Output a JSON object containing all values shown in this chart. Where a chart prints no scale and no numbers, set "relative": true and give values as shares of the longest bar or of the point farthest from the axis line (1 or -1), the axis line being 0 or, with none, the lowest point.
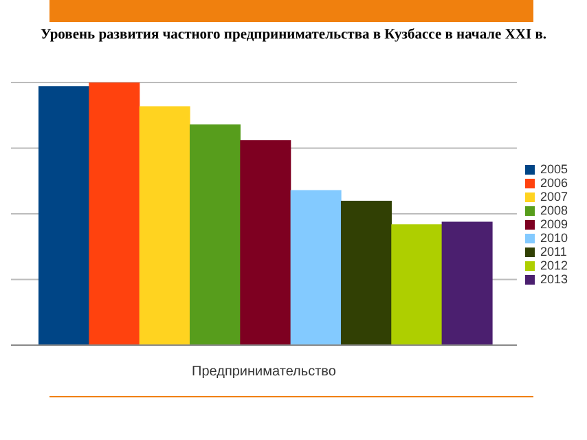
{
  "chart_data": {
    "type": "bar",
    "title": "Уровень развития частного предпринимательства в Кузбассе в начале XXI в.",
    "xlabel": "Предпринимательство",
    "categories": [
      null,
      null,
      null,
      null,
      null,
      null,
      null,
      null,
      null
    ],
    "relative": true,
    "grid": "y",
    "legend": "right",
    "stacked": true,
    "series": [
      {
        "name": "2005",
        "color": "#004586",
        "values": [
          0.986,
          null,
          null,
          null,
          null,
          null,
          null,
          null,
          null
        ]
      },
      {
        "name": "2006",
        "color": "#ff420e",
        "values": [
          null,
          1,
          null,
          null,
          null,
          null,
          null,
          null,
          null
        ]
      },
      {
        "name": "2007",
        "color": "#ffd320",
        "values": [
          null,
          null,
          0.91,
          null,
          null,
          null,
          null,
          null,
          null
        ]
      },
      {
        "name": "2008",
        "color": "#579d1c",
        "values": [
          null,
          null,
          null,
          0.84,
          null,
          null,
          null,
          null,
          null
        ]
      },
      {
        "name": "2009",
        "color": "#7e0021",
        "values": [
          null,
          null,
          null,
          null,
          0.78,
          null,
          null,
          null,
          null
        ]
      },
      {
        "name": "2010",
        "color": "#83caff",
        "values": [
          null,
          null,
          null,
          null,
          null,
          0.59,
          null,
          null,
          null
        ]
      },
      {
        "name": "2011",
        "color": "#314004",
        "values": [
          null,
          null,
          null,
          null,
          null,
          null,
          0.55,
          null,
          null
        ]
      },
      {
        "name": "2012",
        "color": "#aecf00",
        "values": [
          null,
          null,
          null,
          null,
          null,
          null,
          null,
          0.46,
          null
        ]
      },
      {
        "name": "2013",
        "color": "#4b1f6f",
        "values": [
          null,
          null,
          null,
          null,
          null,
          null,
          null,
          null,
          0.47
        ]
      }
    ]
  }
}
